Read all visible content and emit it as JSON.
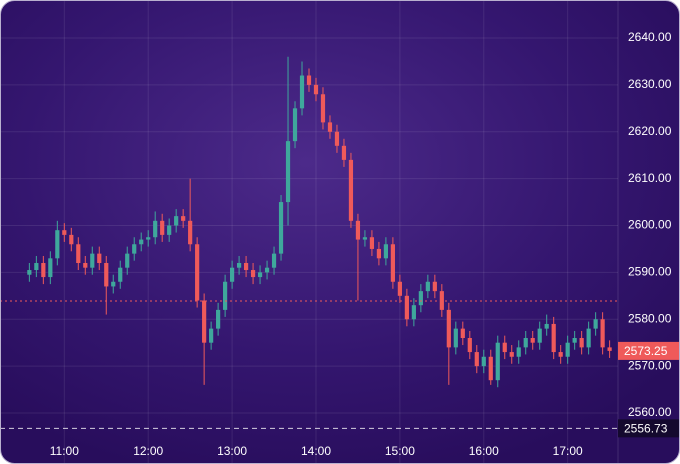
{
  "chart_data": {
    "type": "candlestick",
    "x": [
      "10:35",
      "10:40",
      "10:45",
      "10:50",
      "10:55",
      "11:00",
      "11:05",
      "11:10",
      "11:15",
      "11:20",
      "11:25",
      "11:30",
      "11:35",
      "11:40",
      "11:45",
      "11:50",
      "11:55",
      "12:00",
      "12:05",
      "12:10",
      "12:15",
      "12:20",
      "12:25",
      "12:30",
      "12:35",
      "12:40",
      "12:45",
      "12:50",
      "12:55",
      "13:00",
      "13:05",
      "13:10",
      "13:15",
      "13:20",
      "13:25",
      "13:30",
      "13:35",
      "13:40",
      "13:45",
      "13:50",
      "13:55",
      "14:00",
      "14:05",
      "14:10",
      "14:15",
      "14:20",
      "14:25",
      "14:30",
      "14:35",
      "14:40",
      "14:45",
      "14:50",
      "14:55",
      "15:00",
      "15:05",
      "15:10",
      "15:15",
      "15:20",
      "15:25",
      "15:30",
      "15:35",
      "15:40",
      "15:45",
      "15:50",
      "15:55",
      "16:00",
      "16:05",
      "16:10",
      "16:15",
      "16:20",
      "16:25",
      "16:30",
      "16:35",
      "16:40",
      "16:45",
      "16:50",
      "16:55",
      "17:00",
      "17:05",
      "17:10",
      "17:15",
      "17:20",
      "17:25",
      "17:30"
    ],
    "open": [
      2589.5,
      2590.5,
      2592,
      2589,
      2593,
      2599,
      2598,
      2596,
      2592,
      2591,
      2594,
      2592,
      2587,
      2588,
      2591,
      2594,
      2596,
      2597,
      2597.5,
      2601,
      2598,
      2600,
      2602,
      2601,
      2596,
      2584,
      2575,
      2578,
      2582,
      2588,
      2591,
      2592,
      2590.5,
      2589,
      2590,
      2591,
      2594,
      2605,
      2618,
      2625,
      2632,
      2630,
      2628,
      2622,
      2620,
      2617,
      2614,
      2601,
      2597,
      2597.5,
      2595,
      2593,
      2596,
      2588,
      2585,
      2580,
      2583,
      2586,
      2588,
      2586,
      2582,
      2574,
      2578,
      2576,
      2573,
      2570,
      2572,
      2567,
      2575,
      2573,
      2572,
      2574,
      2576,
      2575,
      2578,
      2579,
      2573,
      2572,
      2575,
      2576,
      2574,
      2578,
      2580,
      2574
    ],
    "high": [
      2592,
      2593.5,
      2593.5,
      2594.5,
      2601,
      2600.5,
      2599.5,
      2597.5,
      2593.5,
      2595.5,
      2595.5,
      2593.5,
      2589.5,
      2592.5,
      2595.5,
      2597.5,
      2598.5,
      2599,
      2603,
      2602.5,
      2601.5,
      2603.5,
      2603.5,
      2610,
      2597.5,
      2585.5,
      2579.5,
      2583.5,
      2589.5,
      2592.5,
      2593.5,
      2593.5,
      2592,
      2591.5,
      2592.5,
      2595.5,
      2606.5,
      2636,
      2626.5,
      2635,
      2633.5,
      2631.5,
      2629.5,
      2623.5,
      2621.5,
      2618.5,
      2615.5,
      2602.5,
      2599,
      2599,
      2596.5,
      2597.5,
      2597.5,
      2589.5,
      2586.5,
      2584.5,
      2587.5,
      2589.5,
      2589.5,
      2587.5,
      2583.5,
      2579.5,
      2579.5,
      2577.5,
      2574.5,
      2573.5,
      2573.5,
      2576.5,
      2576.5,
      2574.5,
      2575.5,
      2577.5,
      2577.5,
      2579.5,
      2581,
      2580.5,
      2574.5,
      2576.5,
      2577.5,
      2577.5,
      2579.5,
      2581.5,
      2581.5,
      2575.5
    ],
    "low": [
      2588,
      2589,
      2587.5,
      2587.5,
      2591.5,
      2596.5,
      2594.5,
      2590.5,
      2589.5,
      2589.5,
      2590.5,
      2581,
      2585.5,
      2586.5,
      2589.5,
      2592.5,
      2594.5,
      2595.5,
      2596,
      2596.5,
      2596.5,
      2598.5,
      2599.5,
      2594.5,
      2582.5,
      2566,
      2573.5,
      2576.5,
      2580.5,
      2586.5,
      2589.5,
      2589,
      2587.5,
      2587.5,
      2588.5,
      2589.5,
      2592.5,
      2600,
      2616.5,
      2623.5,
      2628.5,
      2626.5,
      2620.5,
      2618.5,
      2615.5,
      2612.5,
      2599.5,
      2584,
      2595.5,
      2593.5,
      2591.5,
      2591.5,
      2586.5,
      2583.5,
      2578.5,
      2578.5,
      2581.5,
      2584.5,
      2584.5,
      2580.5,
      2566,
      2572.5,
      2574.5,
      2571.5,
      2568.5,
      2568.5,
      2566,
      2565.5,
      2571.5,
      2570.5,
      2570.5,
      2572.5,
      2573.5,
      2573.5,
      2576.5,
      2571.5,
      2570.5,
      2570.5,
      2573.5,
      2572.5,
      2572.5,
      2576.5,
      2572.5,
      2571.75
    ],
    "close": [
      2590.5,
      2592,
      2589,
      2593,
      2599,
      2598,
      2596,
      2592,
      2591,
      2594,
      2592,
      2587,
      2588,
      2591,
      2594,
      2596,
      2597,
      2597.5,
      2601,
      2598,
      2600,
      2602,
      2601,
      2596,
      2584,
      2575,
      2578,
      2582,
      2588,
      2591,
      2592,
      2590.5,
      2589,
      2590,
      2591,
      2594,
      2605,
      2618,
      2625,
      2632,
      2630,
      2628,
      2622,
      2620,
      2617,
      2614,
      2601,
      2597,
      2597.5,
      2595,
      2593,
      2596,
      2588,
      2585,
      2580,
      2583,
      2586,
      2588,
      2586,
      2582,
      2574,
      2578,
      2576,
      2573,
      2570,
      2572,
      2567,
      2575,
      2573,
      2572,
      2574,
      2576,
      2575,
      2578,
      2579,
      2573,
      2572,
      2575,
      2576,
      2574,
      2578,
      2580,
      2574,
      2573.25
    ],
    "up_color": "#3fa89c",
    "down_color": "#ef5a5a",
    "xlim": [
      "10:14",
      "17:36"
    ],
    "xticks": [
      "11:00",
      "12:00",
      "13:00",
      "14:00",
      "15:00",
      "16:00",
      "17:00"
    ],
    "ylim": [
      2554.24,
      2648.11
    ],
    "yticks": [
      {
        "value": 2560,
        "label": "2560.00"
      },
      {
        "value": 2570,
        "label": "2570.00"
      },
      {
        "value": 2580,
        "label": "2580.00"
      },
      {
        "value": 2590,
        "label": "2590.00"
      },
      {
        "value": 2600,
        "label": "2600.00"
      },
      {
        "value": 2610,
        "label": "2610.00"
      },
      {
        "value": 2620,
        "label": "2620.00"
      },
      {
        "value": 2630,
        "label": "2630.00"
      },
      {
        "value": 2640,
        "label": "2640.00"
      }
    ],
    "grid": true,
    "reference_line": 2583.9,
    "last_price": 2573.25,
    "low_line": 2556.73
  }
}
